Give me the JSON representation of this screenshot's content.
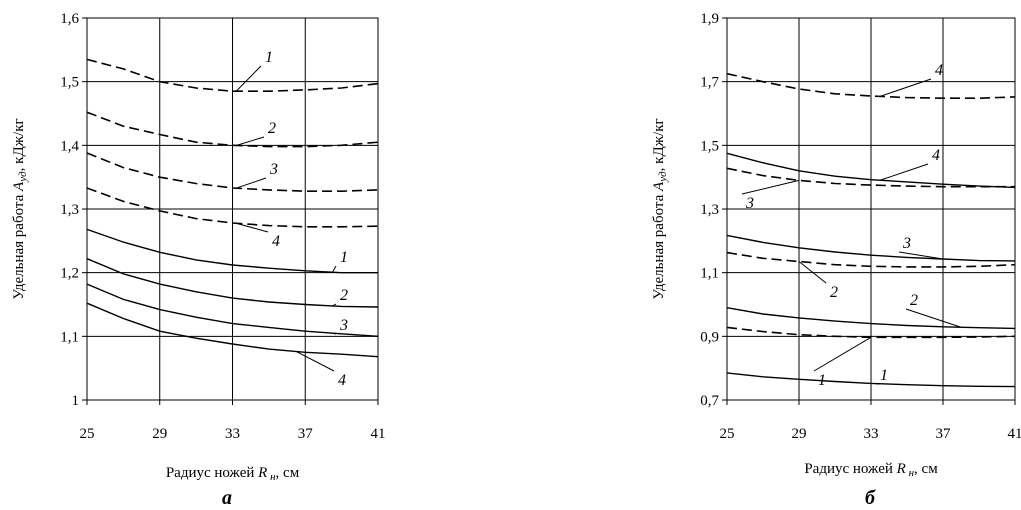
{
  "chart_data": [
    {
      "type": "line",
      "panel_label": "а",
      "xlabel_prefix": "Радиус ножей",
      "xlabel_symbol": "R",
      "xlabel_sub": "н",
      "xlabel_unit": ", см",
      "ylabel_prefix": "Удельная работа",
      "ylabel_symbol": "A",
      "ylabel_sub": "уд",
      "ylabel_unit": ", кДж/кг",
      "xlim": [
        25,
        41
      ],
      "ylim": [
        1.0,
        1.6
      ],
      "x_ticks": [
        25,
        29,
        33,
        37,
        41
      ],
      "x_tick_labels": [
        "25",
        "29",
        "33",
        "37",
        "41"
      ],
      "y_ticks": [
        1.0,
        1.1,
        1.2,
        1.3,
        1.4,
        1.5,
        1.6
      ],
      "y_tick_labels": [
        "1",
        "1,1",
        "1,2",
        "1,3",
        "1,4",
        "1,5",
        "1,6"
      ],
      "grid": true,
      "x": [
        25,
        27,
        29,
        31,
        33,
        35,
        37,
        39,
        41
      ],
      "series": [
        {
          "name": "1",
          "style": "dashed",
          "values": [
            1.535,
            1.52,
            1.5,
            1.49,
            1.485,
            1.485,
            1.487,
            1.49,
            1.497
          ]
        },
        {
          "name": "2",
          "style": "dashed",
          "values": [
            1.452,
            1.43,
            1.417,
            1.405,
            1.4,
            1.398,
            1.398,
            1.4,
            1.405
          ]
        },
        {
          "name": "3",
          "style": "dashed",
          "values": [
            1.388,
            1.365,
            1.35,
            1.34,
            1.333,
            1.33,
            1.328,
            1.328,
            1.33
          ]
        },
        {
          "name": "4",
          "style": "dashed",
          "values": [
            1.333,
            1.312,
            1.297,
            1.285,
            1.278,
            1.274,
            1.272,
            1.272,
            1.273
          ]
        },
        {
          "name": "1",
          "style": "solid",
          "values": [
            1.268,
            1.248,
            1.232,
            1.22,
            1.212,
            1.207,
            1.203,
            1.2,
            1.2
          ]
        },
        {
          "name": "2",
          "style": "solid",
          "values": [
            1.222,
            1.198,
            1.182,
            1.17,
            1.16,
            1.154,
            1.15,
            1.147,
            1.146
          ]
        },
        {
          "name": "3",
          "style": "solid",
          "values": [
            1.182,
            1.158,
            1.142,
            1.13,
            1.12,
            1.114,
            1.108,
            1.104,
            1.1
          ]
        },
        {
          "name": "4",
          "style": "solid",
          "values": [
            1.152,
            1.128,
            1.108,
            1.097,
            1.088,
            1.08,
            1.075,
            1.072,
            1.068
          ]
        }
      ]
    },
    {
      "type": "line",
      "panel_label": "б",
      "xlabel_prefix": "Радиус ножей",
      "xlabel_symbol": "R",
      "xlabel_sub": "н",
      "xlabel_unit": ", см",
      "ylabel_prefix": "Удельная работа",
      "ylabel_symbol": "A",
      "ylabel_sub": "уд",
      "ylabel_unit": ", кДж/кг",
      "xlim": [
        25,
        41
      ],
      "ylim": [
        0.7,
        1.9
      ],
      "x_ticks": [
        25,
        29,
        33,
        37,
        41
      ],
      "x_tick_labels": [
        "25",
        "29",
        "33",
        "37",
        "41"
      ],
      "y_ticks": [
        0.7,
        0.9,
        1.1,
        1.3,
        1.5,
        1.7,
        1.9
      ],
      "y_tick_labels": [
        "0,7",
        "0,9",
        "1,1",
        "1,3",
        "1,5",
        "1,7",
        "1,9"
      ],
      "grid": true,
      "x": [
        25,
        27,
        29,
        31,
        33,
        35,
        37,
        39,
        41
      ],
      "series": [
        {
          "name": "4",
          "style": "dashed",
          "values": [
            1.725,
            1.7,
            1.677,
            1.662,
            1.655,
            1.65,
            1.648,
            1.648,
            1.652
          ]
        },
        {
          "name": "4",
          "style": "solid",
          "values": [
            1.475,
            1.445,
            1.42,
            1.403,
            1.392,
            1.385,
            1.378,
            1.372,
            1.368
          ]
        },
        {
          "name": "3",
          "style": "dashed",
          "values": [
            1.428,
            1.405,
            1.39,
            1.38,
            1.375,
            1.372,
            1.37,
            1.37,
            1.37
          ]
        },
        {
          "name": "3",
          "style": "solid",
          "values": [
            1.217,
            1.195,
            1.178,
            1.165,
            1.155,
            1.148,
            1.143,
            1.138,
            1.137
          ]
        },
        {
          "name": "2",
          "style": "dashed",
          "values": [
            1.163,
            1.145,
            1.135,
            1.125,
            1.12,
            1.118,
            1.118,
            1.12,
            1.125
          ]
        },
        {
          "name": "2",
          "style": "solid",
          "values": [
            0.99,
            0.97,
            0.958,
            0.948,
            0.94,
            0.934,
            0.93,
            0.927,
            0.925
          ]
        },
        {
          "name": "1",
          "style": "dashed",
          "values": [
            0.928,
            0.915,
            0.905,
            0.9,
            0.897,
            0.897,
            0.897,
            0.898,
            0.9
          ]
        },
        {
          "name": "1",
          "style": "solid",
          "values": [
            0.785,
            0.773,
            0.765,
            0.758,
            0.752,
            0.748,
            0.745,
            0.743,
            0.742
          ]
        }
      ]
    }
  ]
}
